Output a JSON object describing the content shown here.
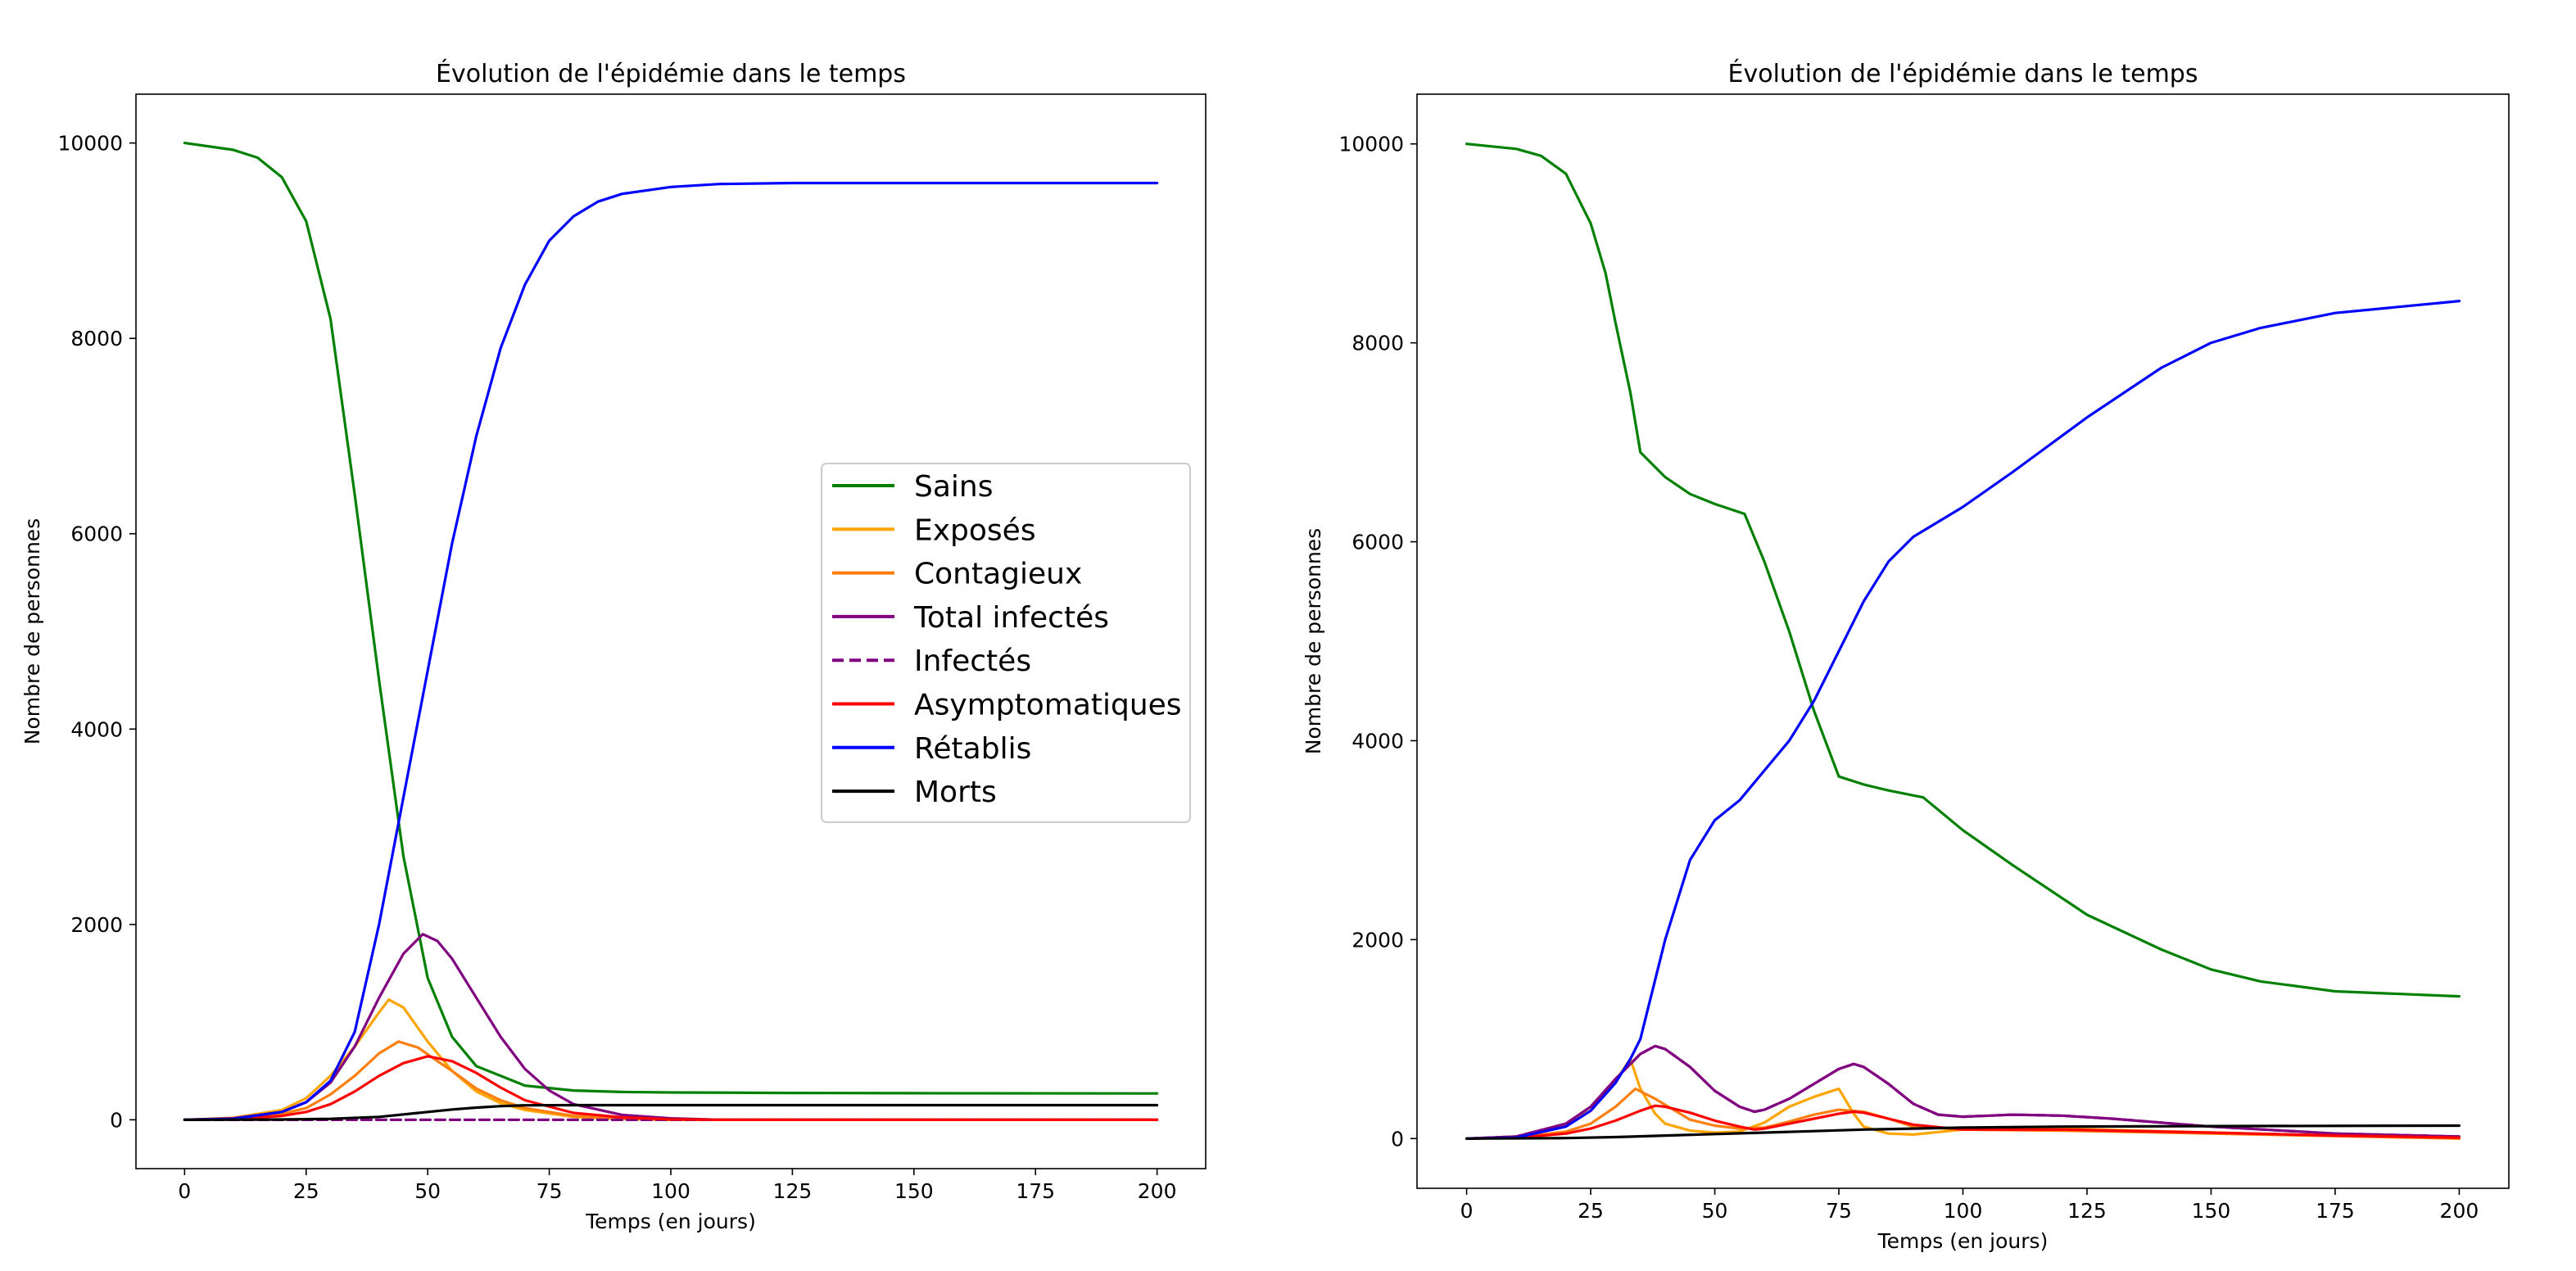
{
  "colors": {
    "sains": "#008000",
    "exposes": "#ffa500",
    "contagieux": "#ff7f0e",
    "total_infectes": "#800080",
    "infectes": "#800080",
    "asymptomatiques": "#ff0000",
    "retablis": "#0000ff",
    "morts": "#000000"
  },
  "chart_data": [
    {
      "type": "line",
      "title": "Évolution de l'épidémie dans le temps",
      "xlabel": "Temps (en jours)",
      "ylabel": "Nombre de personnes",
      "xlim": [
        -10,
        210
      ],
      "ylim": [
        -500,
        10500
      ],
      "xticks": [
        "0",
        "25",
        "50",
        "75",
        "100",
        "125",
        "150",
        "175",
        "200"
      ],
      "yticks": [
        "0",
        "2000",
        "4000",
        "6000",
        "8000",
        "10000"
      ],
      "grid": false,
      "legend": {
        "position": "center-right",
        "entries": [
          "Sains",
          "Exposés",
          "Contagieux",
          "Total infectés",
          "Infectés",
          "Asymptomatiques",
          "Rétablis",
          "Morts"
        ]
      },
      "series": [
        {
          "name": "Sains",
          "color": "sains",
          "dash": false,
          "x": [
            0,
            10,
            15,
            20,
            25,
            30,
            35,
            40,
            45,
            50,
            55,
            60,
            70,
            80,
            90,
            100,
            125,
            150,
            200
          ],
          "y": [
            10000,
            9930,
            9850,
            9650,
            9200,
            8200,
            6400,
            4500,
            2700,
            1450,
            850,
            550,
            350,
            300,
            285,
            280,
            275,
            272,
            270
          ]
        },
        {
          "name": "Exposés",
          "color": "exposes",
          "dash": false,
          "x": [
            0,
            10,
            20,
            25,
            30,
            35,
            40,
            42,
            45,
            50,
            55,
            60,
            65,
            70,
            80,
            90,
            100,
            200
          ],
          "y": [
            0,
            20,
            100,
            220,
            450,
            750,
            1100,
            1230,
            1150,
            800,
            500,
            290,
            170,
            100,
            30,
            10,
            0,
            0
          ]
        },
        {
          "name": "Contagieux",
          "color": "contagieux",
          "dash": false,
          "x": [
            0,
            10,
            20,
            25,
            30,
            35,
            40,
            44,
            48,
            52,
            55,
            60,
            65,
            70,
            80,
            90,
            100,
            200
          ],
          "y": [
            0,
            10,
            60,
            120,
            260,
            450,
            680,
            800,
            740,
            600,
            500,
            320,
            200,
            120,
            40,
            10,
            0,
            0
          ]
        },
        {
          "name": "Total infectés",
          "color": "total_infectes",
          "dash": false,
          "x": [
            0,
            10,
            20,
            25,
            30,
            35,
            40,
            45,
            49,
            52,
            55,
            60,
            65,
            70,
            75,
            80,
            90,
            100,
            110,
            200
          ],
          "y": [
            0,
            15,
            80,
            180,
            380,
            750,
            1250,
            1700,
            1900,
            1830,
            1650,
            1250,
            850,
            520,
            300,
            160,
            50,
            15,
            0,
            0
          ]
        },
        {
          "name": "Infectés",
          "color": "infectes",
          "dash": true,
          "x": [
            0,
            200
          ],
          "y": [
            0,
            0
          ]
        },
        {
          "name": "Asymptomatiques",
          "color": "asymptomatiques",
          "dash": false,
          "x": [
            0,
            10,
            20,
            25,
            30,
            35,
            40,
            45,
            50,
            55,
            60,
            65,
            70,
            80,
            90,
            100,
            110,
            200
          ],
          "y": [
            0,
            8,
            40,
            80,
            160,
            290,
            450,
            580,
            650,
            600,
            480,
            330,
            200,
            70,
            25,
            5,
            0,
            0
          ]
        },
        {
          "name": "Rétablis",
          "color": "retablis",
          "dash": false,
          "x": [
            0,
            10,
            20,
            25,
            30,
            35,
            40,
            45,
            50,
            55,
            60,
            65,
            70,
            75,
            80,
            85,
            90,
            100,
            110,
            125,
            150,
            200
          ],
          "y": [
            0,
            10,
            80,
            180,
            400,
            900,
            2000,
            3300,
            4600,
            5900,
            7000,
            7900,
            8550,
            9000,
            9250,
            9400,
            9480,
            9550,
            9580,
            9590,
            9590,
            9590
          ]
        },
        {
          "name": "Morts",
          "color": "morts",
          "dash": false,
          "x": [
            0,
            20,
            30,
            40,
            45,
            50,
            55,
            60,
            65,
            70,
            80,
            90,
            100,
            200
          ],
          "y": [
            0,
            3,
            10,
            30,
            55,
            80,
            105,
            125,
            140,
            148,
            150,
            150,
            150,
            150
          ]
        }
      ]
    },
    {
      "type": "line",
      "title": "Évolution de l'épidémie dans le temps",
      "xlabel": "Temps (en jours)",
      "ylabel": "Nombre de personnes",
      "xlim": [
        -10,
        210
      ],
      "ylim": [
        -500,
        10500
      ],
      "xticks": [
        "0",
        "25",
        "50",
        "75",
        "100",
        "125",
        "150",
        "175",
        "200"
      ],
      "yticks": [
        "0",
        "2000",
        "4000",
        "6000",
        "8000",
        "10000"
      ],
      "grid": false,
      "series": [
        {
          "name": "Sains",
          "color": "sains",
          "dash": false,
          "x": [
            0,
            10,
            15,
            20,
            25,
            28,
            30,
            33,
            35,
            40,
            45,
            50,
            56,
            60,
            65,
            70,
            75,
            80,
            85,
            92,
            100,
            110,
            125,
            140,
            150,
            160,
            175,
            200
          ],
          "y": [
            10000,
            9950,
            9880,
            9700,
            9200,
            8700,
            8200,
            7500,
            6900,
            6650,
            6480,
            6380,
            6280,
            5800,
            5100,
            4300,
            3640,
            3560,
            3500,
            3430,
            3100,
            2750,
            2250,
            1900,
            1700,
            1580,
            1480,
            1430
          ]
        },
        {
          "name": "Exposés",
          "color": "exposes",
          "dash": false,
          "x": [
            0,
            10,
            20,
            25,
            30,
            33,
            35,
            38,
            40,
            45,
            50,
            55,
            60,
            65,
            70,
            75,
            78,
            80,
            85,
            90,
            100,
            120,
            150,
            200
          ],
          "y": [
            0,
            20,
            140,
            280,
            580,
            800,
            500,
            250,
            150,
            80,
            60,
            70,
            160,
            320,
            420,
            500,
            250,
            120,
            50,
            40,
            90,
            100,
            60,
            0
          ]
        },
        {
          "name": "Contagieux",
          "color": "contagieux",
          "dash": false,
          "x": [
            0,
            10,
            20,
            25,
            30,
            34,
            38,
            42,
            45,
            50,
            55,
            60,
            65,
            70,
            75,
            80,
            85,
            90,
            100,
            120,
            150,
            200
          ],
          "y": [
            0,
            10,
            70,
            150,
            320,
            500,
            400,
            280,
            190,
            130,
            100,
            110,
            170,
            240,
            290,
            270,
            200,
            120,
            90,
            80,
            50,
            0
          ]
        },
        {
          "name": "Total infectés",
          "color": "total_infectes",
          "dash": false,
          "x": [
            0,
            10,
            20,
            25,
            30,
            35,
            38,
            40,
            45,
            50,
            55,
            58,
            60,
            65,
            70,
            75,
            78,
            80,
            85,
            90,
            95,
            100,
            110,
            120,
            130,
            150,
            175,
            200
          ],
          "y": [
            0,
            20,
            150,
            320,
            600,
            850,
            930,
            900,
            720,
            480,
            320,
            270,
            290,
            400,
            550,
            700,
            750,
            720,
            550,
            350,
            240,
            220,
            240,
            230,
            200,
            120,
            50,
            20
          ]
        },
        {
          "name": "Infectés",
          "color": "infectes",
          "dash": true,
          "x": [
            0,
            10,
            20,
            25,
            30,
            35,
            38,
            40,
            45,
            50,
            55,
            58,
            60,
            65,
            70,
            75,
            78,
            80,
            85,
            90,
            95,
            100,
            110,
            120,
            130,
            150,
            175,
            200
          ],
          "y": [
            0,
            20,
            150,
            320,
            600,
            850,
            930,
            900,
            720,
            480,
            320,
            270,
            290,
            400,
            550,
            700,
            750,
            720,
            550,
            350,
            240,
            220,
            240,
            230,
            200,
            120,
            50,
            20
          ]
        },
        {
          "name": "Asymptomatiques",
          "color": "asymptomatiques",
          "dash": false,
          "x": [
            0,
            10,
            20,
            25,
            30,
            35,
            38,
            40,
            45,
            50,
            55,
            58,
            60,
            65,
            70,
            75,
            78,
            80,
            85,
            90,
            100,
            120,
            150,
            175,
            200
          ],
          "y": [
            0,
            8,
            50,
            100,
            180,
            280,
            330,
            320,
            260,
            180,
            120,
            90,
            100,
            150,
            200,
            250,
            270,
            260,
            200,
            140,
            90,
            90,
            60,
            30,
            10
          ]
        },
        {
          "name": "Rétablis",
          "color": "retablis",
          "dash": false,
          "x": [
            0,
            10,
            20,
            25,
            30,
            33,
            35,
            40,
            45,
            50,
            55,
            60,
            65,
            70,
            75,
            80,
            85,
            90,
            95,
            100,
            110,
            125,
            140,
            150,
            160,
            175,
            200
          ],
          "y": [
            0,
            10,
            120,
            280,
            560,
            800,
            1000,
            2000,
            2800,
            3200,
            3400,
            3700,
            4000,
            4400,
            4900,
            5400,
            5800,
            6050,
            6200,
            6350,
            6700,
            7250,
            7750,
            8000,
            8150,
            8300,
            8420
          ]
        },
        {
          "name": "Morts",
          "color": "morts",
          "dash": false,
          "x": [
            0,
            20,
            30,
            40,
            50,
            60,
            70,
            80,
            90,
            100,
            120,
            150,
            200
          ],
          "y": [
            0,
            5,
            15,
            30,
            45,
            60,
            75,
            90,
            100,
            110,
            120,
            125,
            130
          ]
        }
      ]
    }
  ]
}
